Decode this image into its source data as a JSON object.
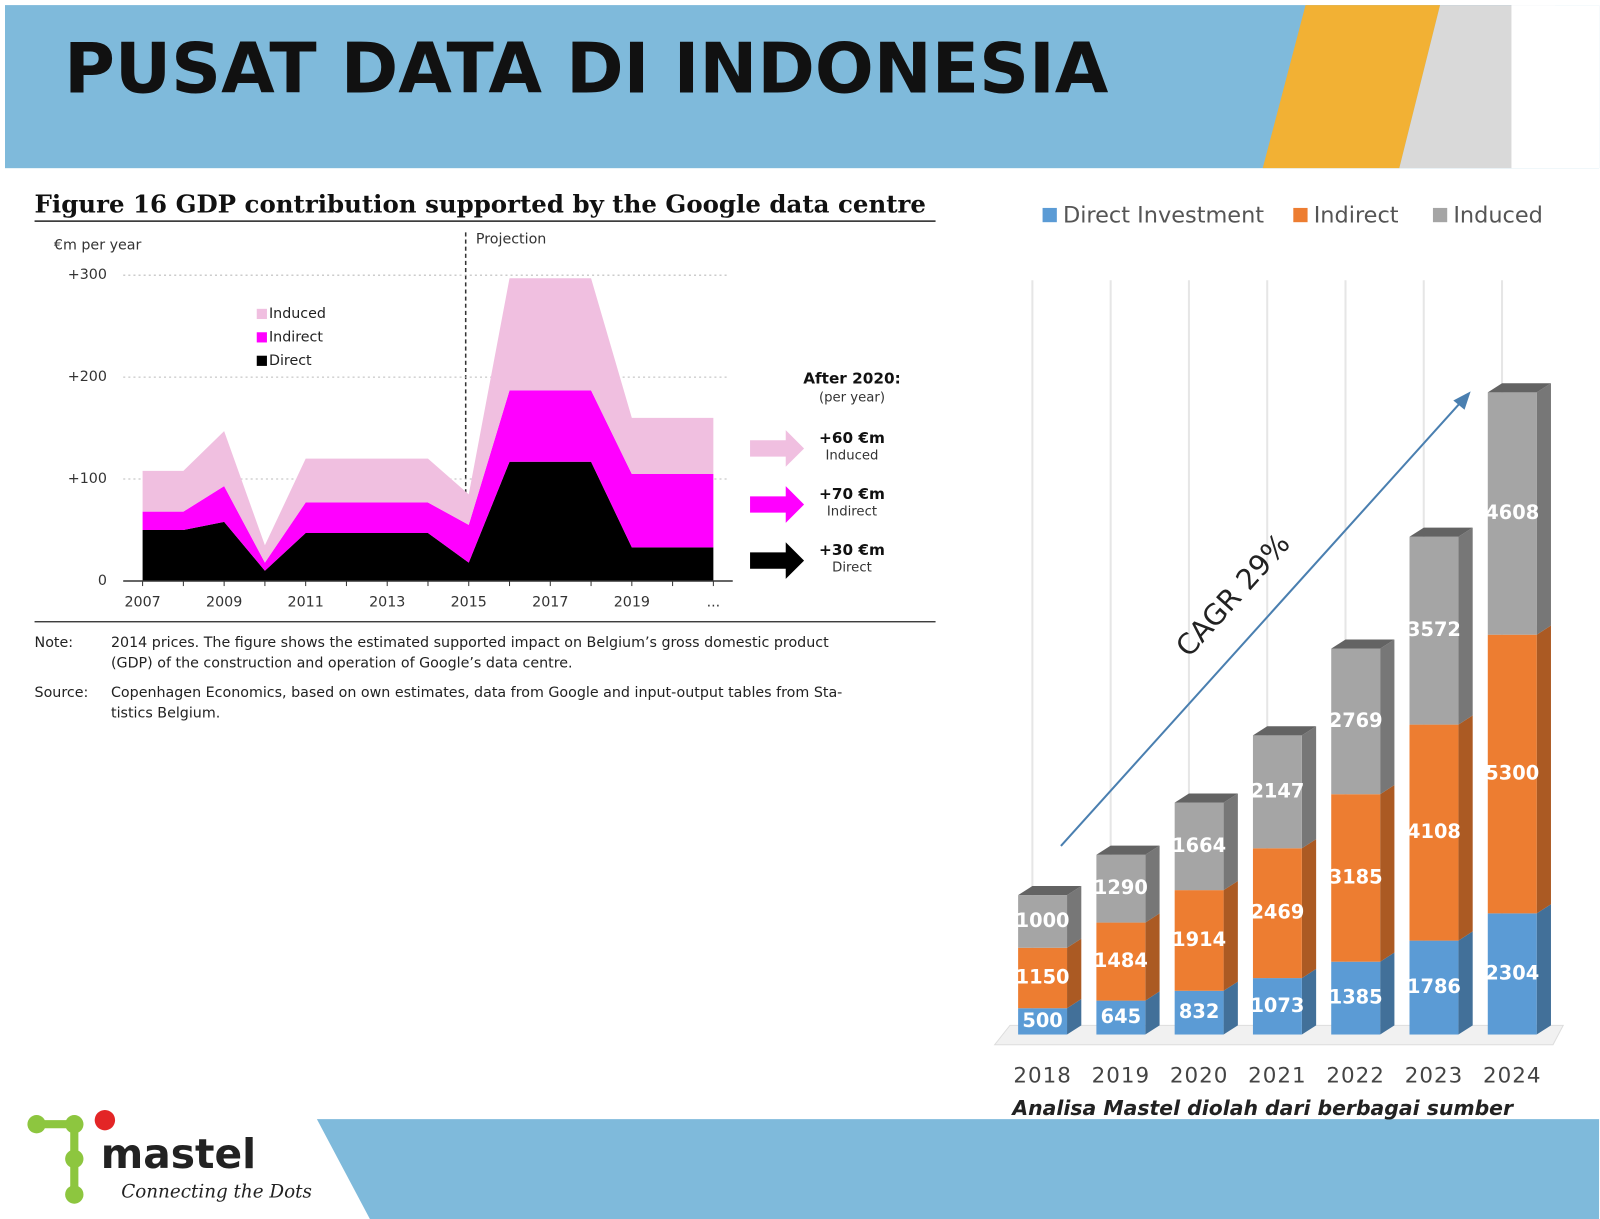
{
  "header": {
    "title": "PUSAT DATA DI INDONESIA"
  },
  "chart_data": [
    {
      "type": "area",
      "stacked": true,
      "title": "Figure 16 GDP contribution supported by the Google data centre",
      "y_label": "€m per year",
      "categories": [
        "2007",
        null,
        "2009",
        null,
        "2011",
        null,
        "2013",
        null,
        "2015",
        null,
        "2017",
        null,
        "2019",
        null,
        "..."
      ],
      "series": [
        {
          "name": "Direct",
          "color": "#000000",
          "values": [
            50,
            50,
            58,
            10,
            47,
            47,
            47,
            47,
            18,
            117,
            117,
            117,
            33,
            33,
            33
          ]
        },
        {
          "name": "Indirect",
          "color": "#ff00ff",
          "values": [
            18,
            18,
            35,
            8,
            30,
            30,
            30,
            30,
            37,
            70,
            70,
            70,
            72,
            72,
            72
          ]
        },
        {
          "name": "Induced",
          "color": "#f0bfe0",
          "values": [
            40,
            40,
            54,
            17,
            43,
            43,
            43,
            43,
            30,
            110,
            110,
            110,
            55,
            55,
            55
          ]
        }
      ],
      "ylim": [
        0,
        300
      ],
      "yticks": [
        0,
        {
          "value": 100,
          "label": "+100"
        },
        {
          "value": 200,
          "label": "+200"
        },
        {
          "value": 300,
          "label": "+300"
        }
      ],
      "grid": true,
      "projection_label": "Projection",
      "side_note": {
        "title": "After 2020:",
        "subtitle": "(per year)",
        "items": [
          {
            "value": "+60 €m",
            "label": "Induced"
          },
          {
            "value": "+70 €m",
            "label": "Indirect"
          },
          {
            "value": "+30 €m",
            "label": "Direct"
          }
        ]
      },
      "note": {
        "label": "Note:",
        "lines": [
          "2014 prices. The figure shows the estimated supported impact on Belgium’s gross domestic product",
          "(GDP) of the construction and operation of Google’s data centre."
        ]
      },
      "source": {
        "label": "Source:",
        "lines": [
          "Copenhagen Economics, based on own estimates, data from Google and input-output tables from Sta-",
          "tistics Belgium."
        ]
      }
    },
    {
      "type": "bar3d",
      "stacked": true,
      "categories": [
        "2018",
        "2019",
        "2020",
        "2021",
        "2022",
        "2023",
        "2024"
      ],
      "series": [
        {
          "name": "Direct Investment",
          "color": "#5b9bd5",
          "values": [
            500,
            645,
            832,
            1073,
            1385,
            1786,
            2304
          ]
        },
        {
          "name": "Indirect",
          "color": "#ed7d31",
          "values": [
            1150,
            1484,
            1914,
            2469,
            3185,
            4108,
            5300
          ]
        },
        {
          "name": "Induced",
          "color": "#a5a5a5",
          "values": [
            1000,
            1290,
            1664,
            2147,
            2769,
            3572,
            4608
          ]
        }
      ],
      "annotation": "CAGR 29%",
      "caption": "Analisa Mastel diolah dari berbagai sumber"
    }
  ],
  "logo": {
    "name": "mastel",
    "tagline": "Connecting the Dots"
  }
}
